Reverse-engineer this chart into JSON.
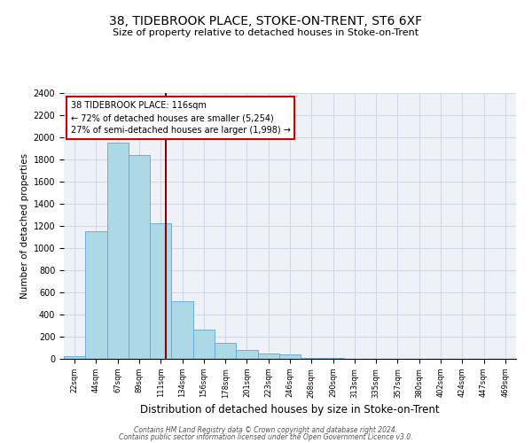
{
  "title": "38, TIDEBROOK PLACE, STOKE-ON-TRENT, ST6 6XF",
  "subtitle": "Size of property relative to detached houses in Stoke-on-Trent",
  "xlabel": "Distribution of detached houses by size in Stoke-on-Trent",
  "ylabel": "Number of detached properties",
  "bin_labels": [
    "22sqm",
    "44sqm",
    "67sqm",
    "89sqm",
    "111sqm",
    "134sqm",
    "156sqm",
    "178sqm",
    "201sqm",
    "223sqm",
    "246sqm",
    "268sqm",
    "290sqm",
    "313sqm",
    "335sqm",
    "357sqm",
    "380sqm",
    "402sqm",
    "424sqm",
    "447sqm",
    "469sqm"
  ],
  "bin_values": [
    25,
    1155,
    1950,
    1840,
    1225,
    520,
    265,
    148,
    80,
    50,
    40,
    10,
    5,
    3,
    2,
    2,
    1,
    1,
    0,
    0,
    0
  ],
  "bar_color": "#add8e6",
  "bar_edge_color": "#6aaed6",
  "marker_label": "38 TIDEBROOK PLACE: 116sqm",
  "annotation_line1": "← 72% of detached houses are smaller (5,254)",
  "annotation_line2": "27% of semi-detached houses are larger (1,998) →",
  "annotation_box_color": "#ffffff",
  "annotation_box_edge": "#cc0000",
  "marker_line_color": "#8b0000",
  "ylim": [
    0,
    2400
  ],
  "yticks": [
    0,
    200,
    400,
    600,
    800,
    1000,
    1200,
    1400,
    1600,
    1800,
    2000,
    2200,
    2400
  ],
  "grid_color": "#d0d8e8",
  "background_color": "#eef2f8",
  "footnote1": "Contains HM Land Registry data © Crown copyright and database right 2024.",
  "footnote2": "Contains public sector information licensed under the Open Government Licence v3.0."
}
